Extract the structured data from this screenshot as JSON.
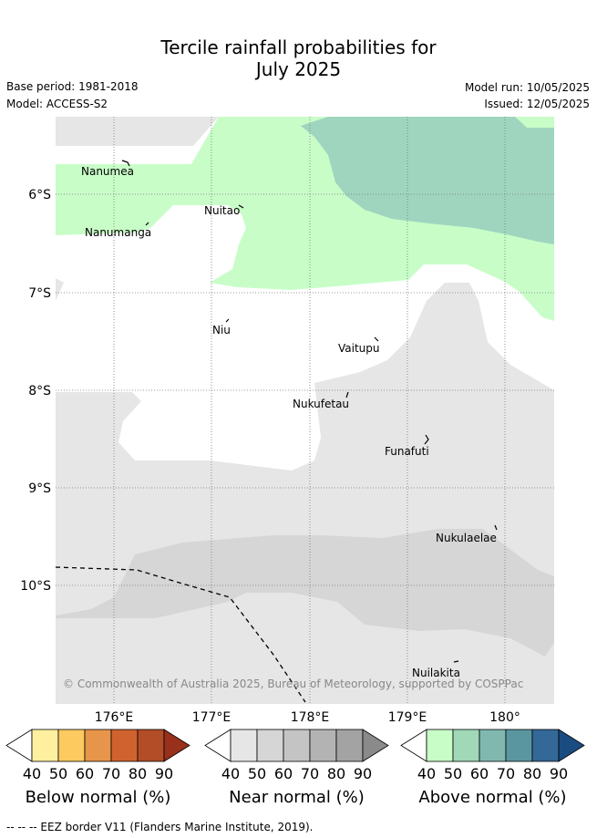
{
  "title": [
    "Tercile rainfall probabilities for",
    "July 2025"
  ],
  "base_period": "Base period: 1981-2018",
  "model": "Model: ACCESS-S2",
  "model_run": "Model run: 10/05/2025",
  "issued": "Issued: 12/05/2025",
  "copyright": "© Commonwealth of Australia 2025, Bureau of Meteorology, supported by COSPPac",
  "lon_labels": [
    "176°E",
    "177°E",
    "178°E",
    "179°E",
    "180°"
  ],
  "lat_labels": [
    "6°S",
    "7°S",
    "8°S",
    "9°S",
    "10°S"
  ],
  "places": {
    "nanumea": "Nanumea",
    "nanumanga": "Nanumanga",
    "nuitao": "Nuitao",
    "niu": "Niu",
    "vaitupu": "Vaitupu",
    "nukufetau": "Nukufetau",
    "funafuti": "Funafuti",
    "nukulaelae": "Nukulaelae",
    "nuilakita": "Nuilakita"
  },
  "colorbars": [
    {
      "title": "Below normal (%)",
      "ticks": [
        "40",
        "50",
        "60",
        "70",
        "80",
        "90"
      ],
      "colors": [
        "#ffffff",
        "#fff0a0",
        "#fdca60",
        "#e6954a",
        "#d0622f",
        "#b24d28",
        "#98301c"
      ]
    },
    {
      "title": "Near normal (%)",
      "ticks": [
        "40",
        "50",
        "60",
        "70",
        "80",
        "90"
      ],
      "colors": [
        "#ffffff",
        "#e6e6e6",
        "#d6d6d6",
        "#c4c4c4",
        "#b3b3b3",
        "#a3a3a3",
        "#8a8a8a"
      ]
    },
    {
      "title": "Above normal (%)",
      "ticks": [
        "40",
        "50",
        "60",
        "70",
        "80",
        "90"
      ],
      "colors": [
        "#ffffff",
        "#c8fdc8",
        "#a0d8b8",
        "#80b8b0",
        "#5a96a0",
        "#346898",
        "#1a4c82"
      ]
    }
  ],
  "footnote": "-- -- -- EEZ border V11 (Flanders Marine Institute, 2019)."
}
